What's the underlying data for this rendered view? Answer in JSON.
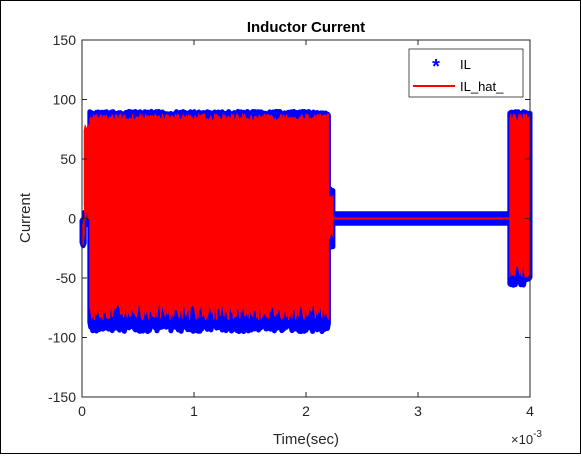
{
  "chart_data": {
    "type": "line",
    "title": "Inductor Current",
    "xlabel": "Time(sec)",
    "ylabel": "Current",
    "x_multiplier_label": "×10",
    "x_multiplier_exponent": "-3",
    "xlim": [
      0,
      4
    ],
    "ylim": [
      -150,
      150
    ],
    "x_ticks": [
      0,
      1,
      2,
      3,
      4
    ],
    "x_tick_labels": [
      "0",
      "1",
      "2",
      "3",
      "4"
    ],
    "y_ticks": [
      150,
      100,
      50,
      0,
      -50,
      -100,
      -150
    ],
    "y_tick_labels": [
      "150",
      "100",
      "50",
      "0",
      "-50",
      "-100",
      "-150"
    ],
    "grid": false,
    "legend_position": "top-right",
    "series": [
      {
        "name": "IL",
        "marker": "*",
        "color": "#0000ff",
        "segments": [
          {
            "x_start": 0.0,
            "x_end": 0.02,
            "y_min": -25,
            "y_max": 0
          },
          {
            "x_start": 0.02,
            "x_end": 0.07,
            "y_min": -5,
            "y_max": 5
          },
          {
            "x_start": 0.07,
            "x_end": 2.2,
            "y_min": -95,
            "y_max": 90
          },
          {
            "x_start": 2.2,
            "x_end": 2.24,
            "y_min": -25,
            "y_max": 25
          },
          {
            "x_start": 2.24,
            "x_end": 3.82,
            "y_min": -4,
            "y_max": 4
          },
          {
            "x_start": 3.82,
            "x_end": 4.0,
            "y_min": -57,
            "y_max": 90
          }
        ]
      },
      {
        "name": "IL_hat_",
        "color": "#ff0000",
        "segments": [
          {
            "x_start": 0.0,
            "x_end": 0.02,
            "y_min": -22,
            "y_max": 0
          },
          {
            "x_start": 0.02,
            "x_end": 0.07,
            "y_min": -2,
            "y_max": 80
          },
          {
            "x_start": 0.07,
            "x_end": 2.2,
            "y_min": -85,
            "y_max": 88
          },
          {
            "x_start": 2.2,
            "x_end": 2.24,
            "y_min": -20,
            "y_max": 20
          },
          {
            "x_start": 2.24,
            "x_end": 3.82,
            "y_min": 0,
            "y_max": 0
          },
          {
            "x_start": 3.82,
            "x_end": 4.0,
            "y_min": -50,
            "y_max": 88
          }
        ]
      }
    ]
  },
  "colors": {
    "il_marker": "#0000ff",
    "il_hat_line": "#ff0000",
    "axes": "#262626",
    "frame": "#000000"
  }
}
